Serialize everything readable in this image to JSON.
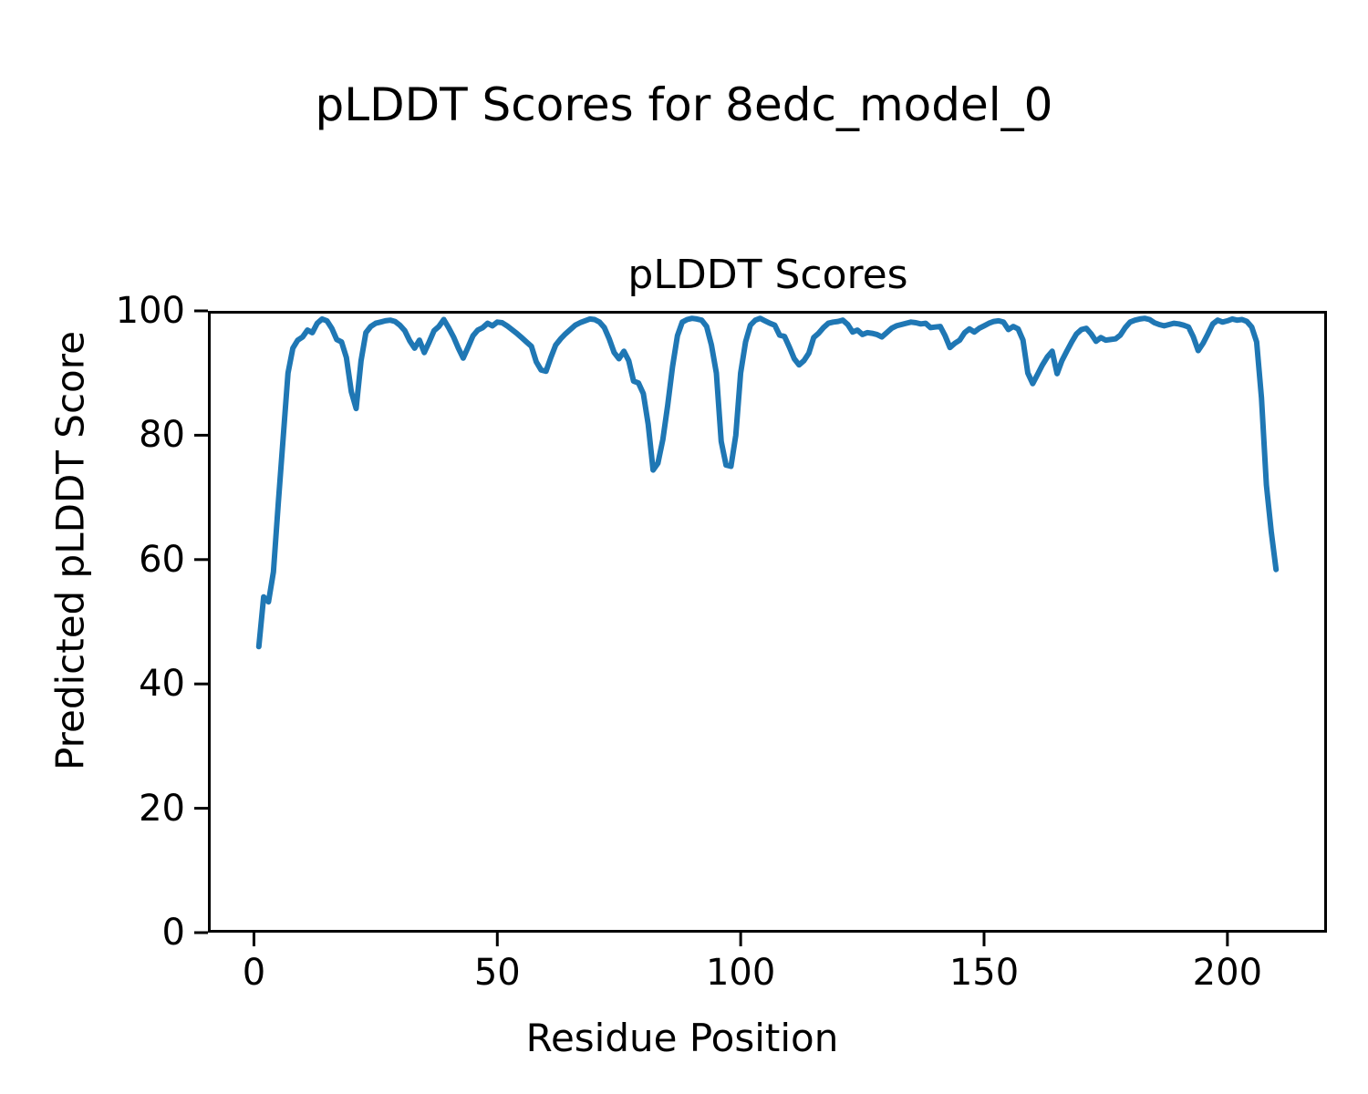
{
  "chart_data": {
    "type": "line",
    "suptitle": "pLDDT Scores for 8edc_model_0",
    "title": "pLDDT Scores",
    "xlabel": "Residue Position",
    "ylabel": "Predicted pLDDT Score",
    "xlim": [
      -9.45,
      220.45
    ],
    "ylim": [
      0,
      100
    ],
    "xticks": [
      0,
      50,
      100,
      150,
      200
    ],
    "yticks": [
      0,
      20,
      40,
      60,
      80,
      100
    ],
    "grid": false,
    "legend": "none",
    "line_color": "#1f77b4",
    "axis_color": "#000000",
    "series": [
      {
        "name": "pLDDT",
        "x_start": 1,
        "x_step": 1,
        "values": [
          46,
          54,
          53.2,
          58,
          69,
          79.6,
          90,
          94,
          95.3,
          95.8,
          96.9,
          96.5,
          98,
          98.7,
          98.4,
          97.2,
          95.4,
          95,
          92.5,
          87,
          84.3,
          92,
          96.5,
          97.5,
          98,
          98.2,
          98.4,
          98.5,
          98.3,
          97.7,
          96.8,
          95.2,
          94,
          95.3,
          93.3,
          95,
          96.8,
          97.5,
          98.6,
          97.3,
          95.8,
          94,
          92.4,
          94.2,
          96,
          96.9,
          97.3,
          98,
          97.6,
          98.2,
          98.1,
          97.6,
          97,
          96.4,
          95.7,
          95,
          94.3,
          91.8,
          90.5,
          90.3,
          92.5,
          94.5,
          95.5,
          96.3,
          97,
          97.7,
          98.1,
          98.4,
          98.7,
          98.6,
          98.2,
          97.3,
          95.5,
          93.3,
          92.3,
          93.5,
          92,
          88.7,
          88.4,
          86.7,
          81.8,
          74.4,
          75.5,
          79.3,
          84.8,
          91,
          96,
          98.2,
          98.6,
          98.8,
          98.7,
          98.5,
          97.5,
          94.5,
          90,
          79,
          75.2,
          75,
          80,
          90,
          95,
          97.7,
          98.5,
          98.8,
          98.4,
          98,
          97.7,
          96.1,
          95.9,
          94.2,
          92.3,
          91.3,
          92,
          93.2,
          95.7,
          96.4,
          97.3,
          98,
          98.2,
          98.3,
          98.5,
          97.8,
          96.6,
          96.9,
          96.2,
          96.5,
          96.4,
          96.2,
          95.8,
          96.5,
          97.2,
          97.6,
          97.8,
          98,
          98.2,
          98.1,
          97.9,
          98,
          97.3,
          97.4,
          97.5,
          96,
          94.1,
          94.8,
          95.3,
          96.5,
          97.1,
          96.6,
          97.2,
          97.6,
          98,
          98.3,
          98.4,
          98.2,
          97,
          97.5,
          97.1,
          95.3,
          90,
          88.3,
          89.8,
          91.3,
          92.6,
          93.5,
          89.9,
          92,
          93.5,
          95,
          96.3,
          97,
          97.2,
          96.3,
          95.1,
          95.7,
          95.3,
          95.4,
          95.5,
          96.1,
          97.3,
          98.2,
          98.5,
          98.7,
          98.8,
          98.6,
          98.1,
          97.8,
          97.6,
          97.8,
          98,
          97.9,
          97.7,
          97.4,
          95.8,
          93.6,
          94.8,
          96.3,
          97.9,
          98.5,
          98.2,
          98.4,
          98.7,
          98.5,
          98.6,
          98.3,
          97.4,
          95,
          86,
          72,
          64.5,
          58.4
        ]
      }
    ]
  }
}
